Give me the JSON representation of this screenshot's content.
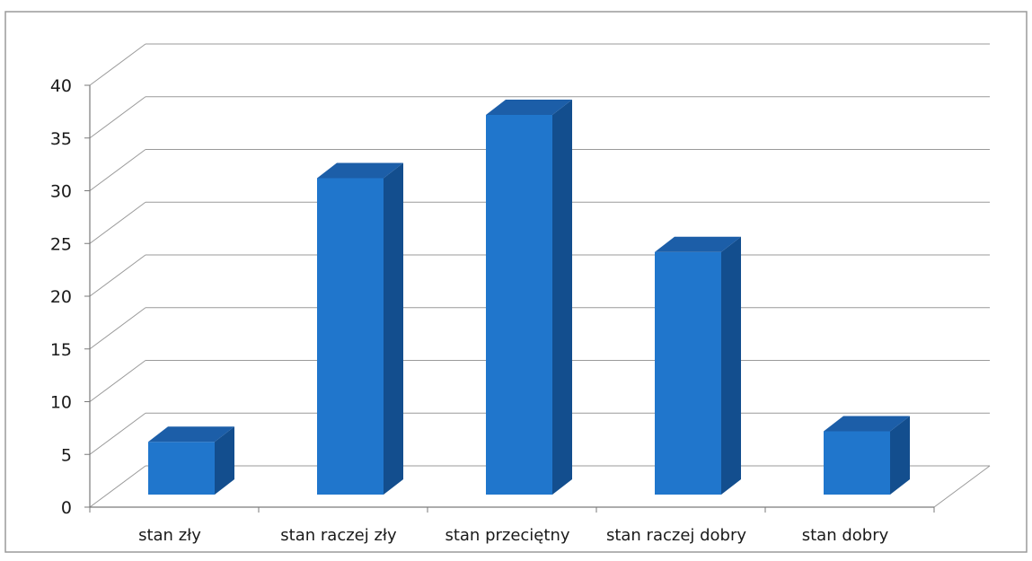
{
  "chart_data": {
    "type": "bar",
    "style": "3d-column",
    "categories": [
      "stan zły",
      "stan raczej zły",
      "stan przeciętny",
      "stan raczej dobry",
      "stan dobry"
    ],
    "values": [
      5,
      30,
      36,
      23,
      6
    ],
    "ylim": [
      0,
      40
    ],
    "yticks": [
      "0",
      "5",
      "10",
      "15",
      "20",
      "25",
      "30",
      "35",
      "40"
    ],
    "grid": true,
    "legend": "none",
    "colors": {
      "bar_front": "#2076cc",
      "bar_side": "#134e8e",
      "bar_top": "#1c5ea8",
      "grid": "#9a9a9a",
      "axis": "#7a7a7a",
      "frame": "#9a9a9a"
    }
  }
}
